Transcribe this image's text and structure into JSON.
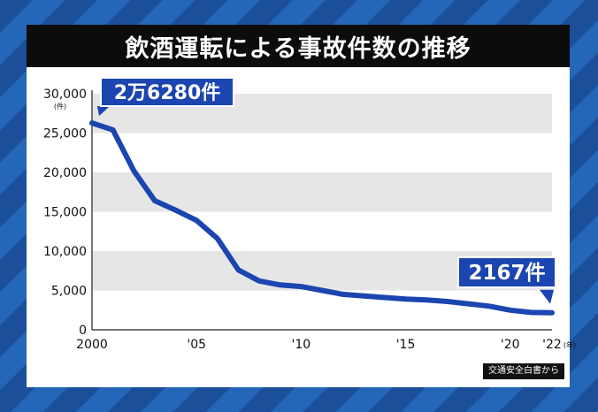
{
  "title": "飲酒運転による事故件数の推移",
  "source": "交通安全白書から",
  "colors": {
    "background": "#1f56a3",
    "panel": "#ffffff",
    "title_bar": "#0c0c0c",
    "band": "#e6e6e6",
    "line": "#1b45b0",
    "callout": "#1b45b0",
    "axis": "#222222"
  },
  "chart_data": {
    "type": "line",
    "title": "飲酒運転による事故件数の推移",
    "y_unit": "(件)",
    "x_unit": "(年)",
    "ylim": [
      0,
      30000
    ],
    "xlim": [
      2000,
      2022
    ],
    "y_ticks": [
      0,
      5000,
      10000,
      15000,
      20000,
      25000,
      30000
    ],
    "y_tick_labels": [
      "0",
      "5,000",
      "10,000",
      "15,000",
      "20,000",
      "25,000",
      "30,000"
    ],
    "x_ticks": [
      2000,
      2005,
      2010,
      2015,
      2020,
      2022
    ],
    "x_tick_labels": [
      "2000",
      "'05",
      "'10",
      "'15",
      "'20",
      "'22"
    ],
    "grid": "alternating horizontal bands",
    "x": [
      2000,
      2001,
      2002,
      2003,
      2004,
      2005,
      2006,
      2007,
      2008,
      2009,
      2010,
      2011,
      2012,
      2013,
      2014,
      2015,
      2016,
      2017,
      2018,
      2019,
      2020,
      2021,
      2022
    ],
    "values": [
      26280,
      25400,
      20200,
      16400,
      15200,
      13900,
      11600,
      7600,
      6200,
      5700,
      5500,
      5000,
      4500,
      4300,
      4100,
      3900,
      3800,
      3600,
      3300,
      3000,
      2500,
      2200,
      2167
    ],
    "annotations": [
      {
        "x": 2000,
        "y": 26280,
        "text": "2万6280件"
      },
      {
        "x": 2022,
        "y": 2167,
        "text": "2167件"
      }
    ]
  }
}
